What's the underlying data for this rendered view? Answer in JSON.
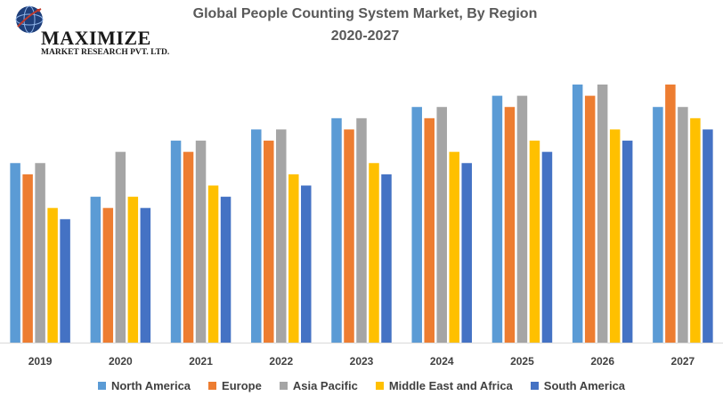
{
  "logo": {
    "name": "MAXIMIZE",
    "subtitle": "MARKET RESEARCH PVT. LTD."
  },
  "chart_data": {
    "type": "bar",
    "title": "Global People Counting System Market, By Region",
    "subtitle": "2020-2027",
    "categories": [
      "2019",
      "2020",
      "2021",
      "2022",
      "2023",
      "2024",
      "2025",
      "2026",
      "2027"
    ],
    "series": [
      {
        "name": "North America",
        "color": "#5B9BD5",
        "values": [
          16,
          13,
          18,
          19,
          20,
          21,
          22,
          23,
          21
        ]
      },
      {
        "name": "Europe",
        "color": "#ED7D31",
        "values": [
          15,
          12,
          17,
          18,
          19,
          20,
          21,
          22,
          23
        ]
      },
      {
        "name": "Asia Pacific",
        "color": "#A5A5A5",
        "values": [
          16,
          17,
          18,
          19,
          20,
          21,
          22,
          23,
          21
        ]
      },
      {
        "name": "Middle East and Africa",
        "color": "#FFC000",
        "values": [
          12,
          13,
          14,
          15,
          16,
          17,
          18,
          19,
          20
        ]
      },
      {
        "name": "South America",
        "color": "#4472C4",
        "values": [
          11,
          12,
          13,
          14,
          15,
          16,
          17,
          18,
          19
        ]
      }
    ],
    "ylim": [
      0,
      23
    ],
    "grid": false,
    "legend_position": "bottom"
  }
}
